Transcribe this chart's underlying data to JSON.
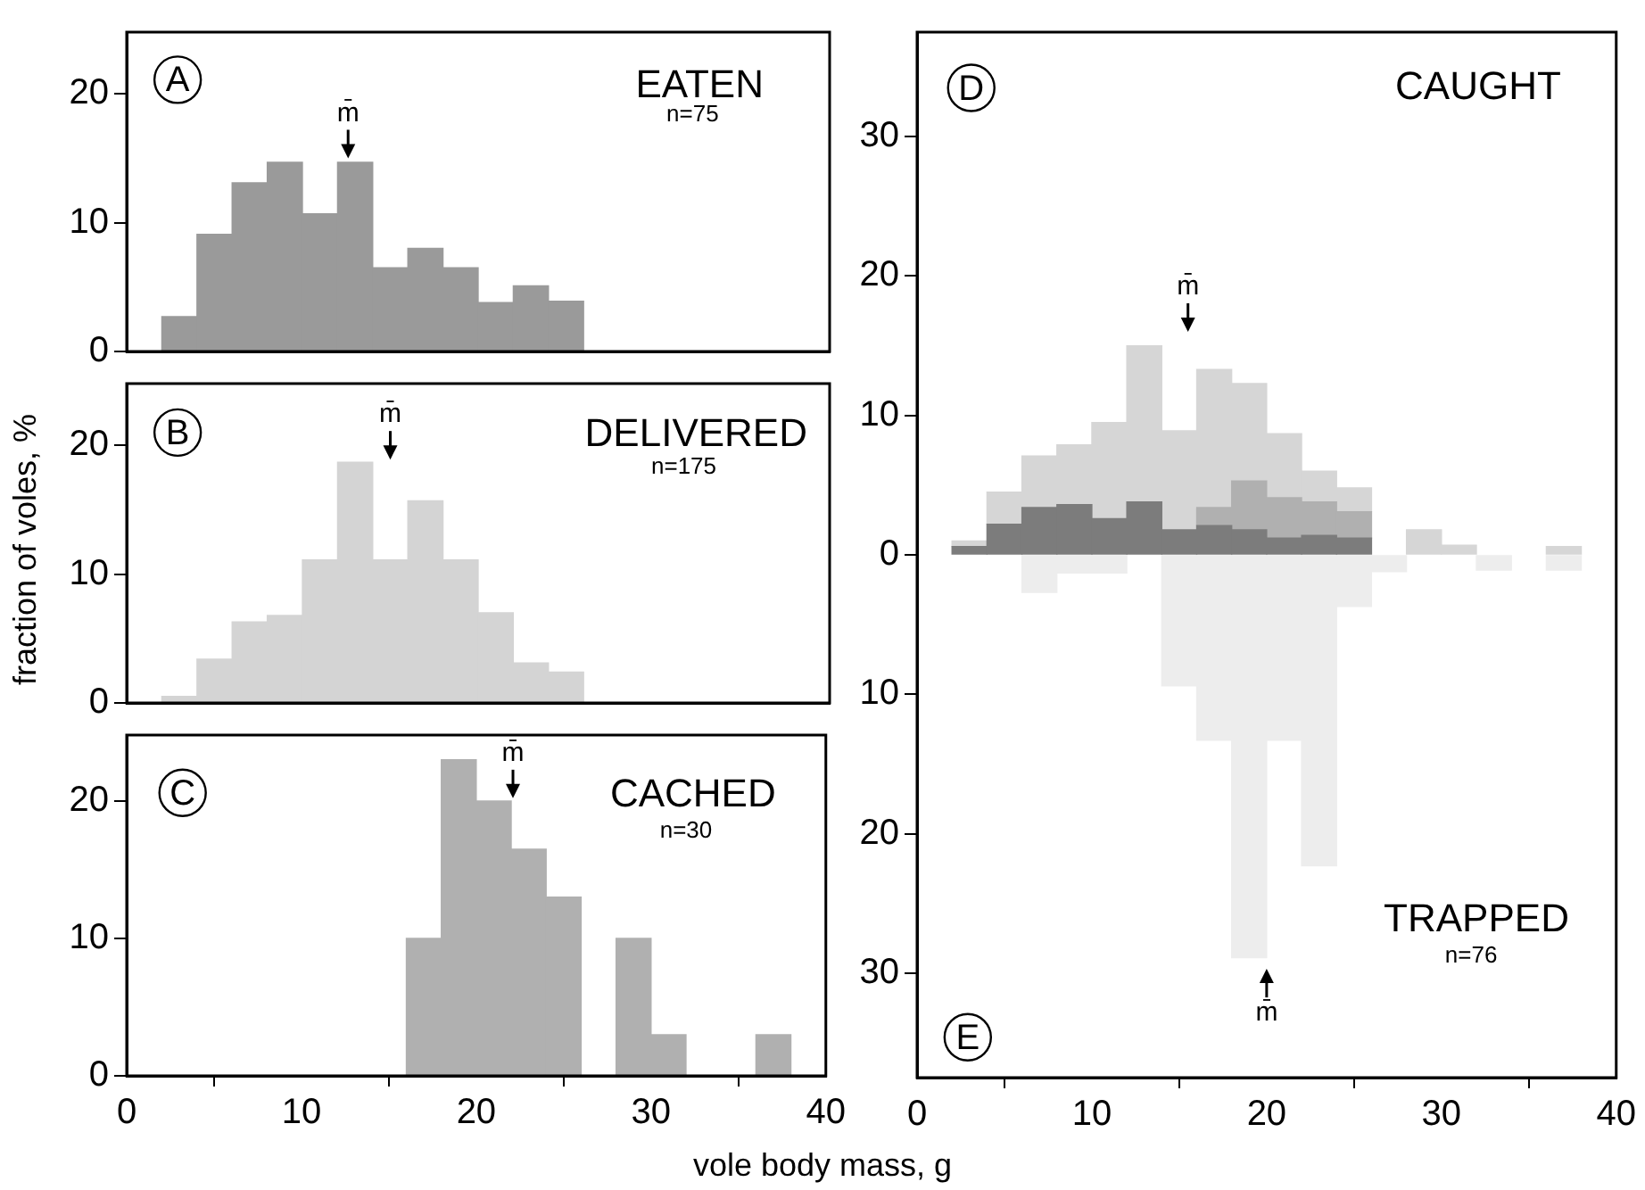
{
  "chart_data": [
    {
      "type": "histogram",
      "title": "EATEN",
      "subtitle": "n=75",
      "bins": [
        0,
        2,
        4,
        6,
        8,
        10,
        12,
        14,
        16,
        18,
        20,
        22,
        24,
        26,
        28,
        30,
        32,
        34,
        36,
        38,
        40
      ],
      "values": [
        0,
        2.7,
        9.1,
        13.1,
        14.7,
        10.7,
        14.7,
        6.5,
        8,
        6.5,
        3.8,
        5.1,
        3.9,
        0,
        0,
        0,
        0,
        0,
        0,
        0
      ],
      "color": "#9a9a9a",
      "xlim": [
        0,
        40
      ],
      "xticks": [
        0,
        10,
        20,
        30,
        40
      ],
      "ylim": [
        0,
        24.8
      ],
      "yticks": [
        0,
        10,
        20
      ],
      "tick_labels": "y",
      "annotations": [
        "A",
        "m̄"
      ]
    },
    {
      "type": "histogram",
      "title": "DELIVERED",
      "subtitle": "n=175",
      "ylabel": "fraction of voles, %",
      "bins": [
        0,
        2,
        4,
        6,
        8,
        10,
        12,
        14,
        16,
        18,
        20,
        22,
        24,
        26,
        28,
        30,
        32,
        34,
        36,
        38,
        40
      ],
      "values": [
        0,
        0.5,
        3.4,
        6.3,
        6.8,
        11.1,
        18.7,
        11.1,
        15.7,
        11.1,
        7,
        3.1,
        2.4,
        0,
        0,
        0,
        0,
        0,
        0,
        0
      ],
      "color": "#d4d4d4",
      "xlim": [
        0,
        40
      ],
      "xticks": [
        0,
        10,
        20,
        30,
        40
      ],
      "ylim": [
        0,
        24.8
      ],
      "yticks": [
        0,
        10,
        20
      ],
      "tick_labels": "y",
      "annotations": [
        "B",
        "m̄"
      ]
    },
    {
      "type": "histogram",
      "title": "CACHED",
      "subtitle": "n=30",
      "bins": [
        0,
        2,
        4,
        6,
        8,
        10,
        12,
        14,
        16,
        18,
        20,
        22,
        24,
        26,
        28,
        30,
        32,
        34,
        36,
        38,
        40
      ],
      "values": [
        0,
        0,
        0,
        0,
        0,
        0,
        0,
        0,
        10,
        23,
        20,
        16.5,
        13,
        0,
        10,
        3,
        0,
        0,
        3,
        0
      ],
      "color": "#b0b0b0",
      "xlim": [
        0,
        40
      ],
      "xticks": [
        0,
        10,
        20,
        30,
        40
      ],
      "ylim": [
        0,
        24.8
      ],
      "yticks": [
        0,
        10,
        20
      ],
      "annotations": [
        "C",
        "m̄"
      ]
    },
    {
      "type": "bar",
      "title": "CAUGHT",
      "xlabel": "vole body mass, g",
      "x": [
        1,
        3,
        5,
        7,
        9,
        11,
        13,
        15,
        17,
        19,
        21,
        23,
        25,
        27,
        29,
        31,
        33,
        35,
        37,
        39
      ],
      "xlim": [
        0,
        40
      ],
      "xticks": [
        0,
        10,
        20,
        30,
        40
      ],
      "ylim": [
        -37.5,
        37.5
      ],
      "yticks": [
        {
          "value": -30,
          "label": "30"
        },
        {
          "value": -20,
          "label": "20"
        },
        {
          "value": -10,
          "label": "10"
        },
        0,
        10,
        20,
        30
      ],
      "stacked": true,
      "series": [
        {
          "color": "#7c7c7c",
          "values": [
            0,
            0.6,
            2.2,
            3.4,
            3.6,
            2.6,
            3.8,
            1.8,
            2.1,
            1.8,
            1.2,
            1.4,
            1.2,
            0,
            0,
            0,
            0,
            0,
            0,
            0
          ]
        },
        {
          "color": "#b0b0b0",
          "values": [
            0,
            0,
            0,
            0,
            0,
            0,
            0,
            0,
            1.3,
            3.5,
            2.9,
            2.4,
            1.9,
            0,
            0,
            0,
            0,
            0,
            0,
            0
          ]
        },
        {
          "color": "#d6d6d6",
          "values": [
            0,
            0.4,
            2.3,
            3.7,
            4.3,
            6.9,
            11.2,
            7.1,
            9.9,
            7,
            4.6,
            2.2,
            1.7,
            0,
            1.8,
            0.7,
            0,
            0,
            0.6,
            0
          ]
        },
        {
          "color": "#ededed",
          "values": [
            0,
            0,
            0,
            -2.7,
            -1.3,
            -1.3,
            0,
            -9.4,
            -13.3,
            -28.9,
            -13.3,
            -22.3,
            -3.7,
            -1.2,
            0,
            0,
            -1.1,
            0,
            -1.1,
            0
          ]
        }
      ],
      "annotations": [
        "D",
        "m̄",
        "E",
        "TRAPPED",
        "n=76",
        "m̄"
      ]
    }
  ]
}
